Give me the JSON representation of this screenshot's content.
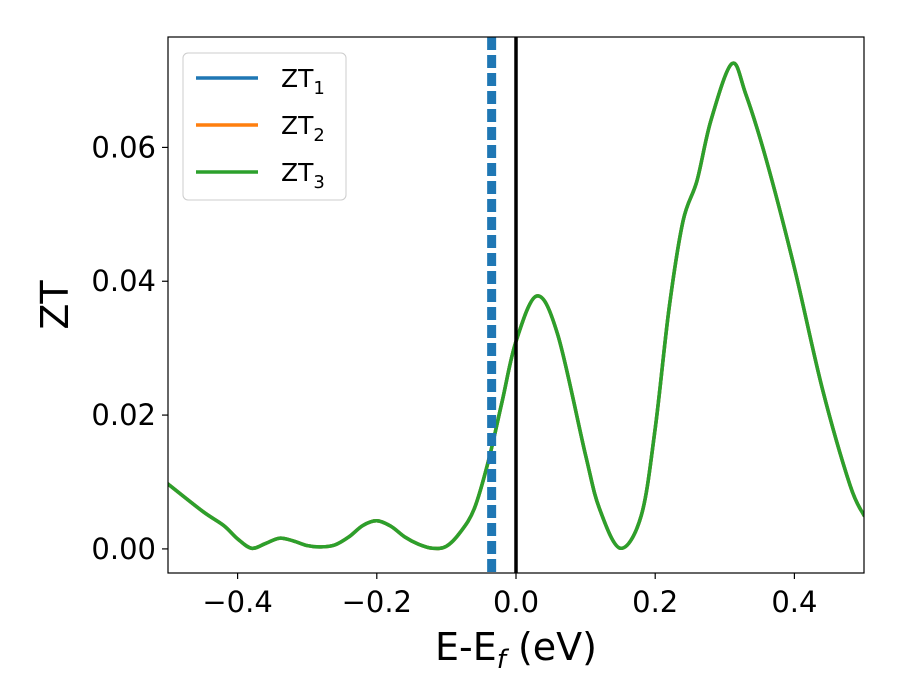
{
  "chart_data": {
    "type": "line",
    "title": "",
    "xlabel": "E-E",
    "xlabel_sub": "f",
    "xlabel_unit": " (eV)",
    "ylabel": "ZT",
    "xlim": [
      -0.5,
      0.5
    ],
    "ylim": [
      -0.0036,
      0.0765
    ],
    "xticks": [
      -0.4,
      -0.2,
      0.0,
      0.2,
      0.4
    ],
    "xtick_labels": [
      "−0.4",
      "−0.2",
      "0.0",
      "0.2",
      "0.4"
    ],
    "yticks": [
      0.0,
      0.02,
      0.04,
      0.06
    ],
    "ytick_labels": [
      "0.00",
      "0.02",
      "0.04",
      "0.06"
    ],
    "grid": false,
    "legend_position": "top-left",
    "fermi_line_x": 0.0,
    "dashed_line_x": -0.035,
    "series": [
      {
        "name": "ZT",
        "sub": "1",
        "color": "#1f77b4",
        "x": [
          -0.5,
          -0.45,
          -0.42,
          -0.4,
          -0.38,
          -0.36,
          -0.34,
          -0.32,
          -0.3,
          -0.28,
          -0.26,
          -0.24,
          -0.22,
          -0.2,
          -0.18,
          -0.16,
          -0.14,
          -0.12,
          -0.1,
          -0.08,
          -0.06,
          -0.04,
          -0.02,
          0.0,
          0.03,
          0.06,
          0.1,
          0.12,
          0.15,
          0.18,
          0.2,
          0.22,
          0.24,
          0.26,
          0.28,
          0.31,
          0.33,
          0.36,
          0.4,
          0.44,
          0.48,
          0.5
        ],
        "y": [
          0.0097,
          0.0056,
          0.0035,
          0.0015,
          0.0001,
          0.0008,
          0.0016,
          0.0012,
          0.0005,
          0.0003,
          0.0006,
          0.0018,
          0.0035,
          0.0042,
          0.0034,
          0.0018,
          0.0007,
          0.0001,
          0.0004,
          0.0025,
          0.006,
          0.013,
          0.022,
          0.031,
          0.0378,
          0.032,
          0.014,
          0.006,
          0.0001,
          0.005,
          0.018,
          0.036,
          0.049,
          0.055,
          0.064,
          0.0725,
          0.068,
          0.058,
          0.042,
          0.024,
          0.0095,
          0.005
        ]
      },
      {
        "name": "ZT",
        "sub": "2",
        "color": "#ff7f0e",
        "x": [
          -0.5,
          -0.45,
          -0.42,
          -0.4,
          -0.38,
          -0.36,
          -0.34,
          -0.32,
          -0.3,
          -0.28,
          -0.26,
          -0.24,
          -0.22,
          -0.2,
          -0.18,
          -0.16,
          -0.14,
          -0.12,
          -0.1,
          -0.08,
          -0.06,
          -0.04,
          -0.02,
          0.0,
          0.03,
          0.06,
          0.1,
          0.12,
          0.15,
          0.18,
          0.2,
          0.22,
          0.24,
          0.26,
          0.28,
          0.31,
          0.33,
          0.36,
          0.4,
          0.44,
          0.48,
          0.5
        ],
        "y": [
          0.0097,
          0.0056,
          0.0035,
          0.0015,
          0.0001,
          0.0008,
          0.0016,
          0.0012,
          0.0005,
          0.0003,
          0.0006,
          0.0018,
          0.0035,
          0.0042,
          0.0034,
          0.0018,
          0.0007,
          0.0001,
          0.0004,
          0.0025,
          0.006,
          0.013,
          0.022,
          0.031,
          0.0378,
          0.032,
          0.014,
          0.006,
          0.0001,
          0.005,
          0.018,
          0.036,
          0.049,
          0.055,
          0.064,
          0.0725,
          0.068,
          0.058,
          0.042,
          0.024,
          0.0095,
          0.005
        ]
      },
      {
        "name": "ZT",
        "sub": "3",
        "color": "#2ca02c",
        "x": [
          -0.5,
          -0.45,
          -0.42,
          -0.4,
          -0.38,
          -0.36,
          -0.34,
          -0.32,
          -0.3,
          -0.28,
          -0.26,
          -0.24,
          -0.22,
          -0.2,
          -0.18,
          -0.16,
          -0.14,
          -0.12,
          -0.1,
          -0.08,
          -0.06,
          -0.04,
          -0.02,
          0.0,
          0.03,
          0.06,
          0.1,
          0.12,
          0.15,
          0.18,
          0.2,
          0.22,
          0.24,
          0.26,
          0.28,
          0.31,
          0.33,
          0.36,
          0.4,
          0.44,
          0.48,
          0.5
        ],
        "y": [
          0.0097,
          0.0056,
          0.0035,
          0.0015,
          0.0001,
          0.0008,
          0.0016,
          0.0012,
          0.0005,
          0.0003,
          0.0006,
          0.0018,
          0.0035,
          0.0042,
          0.0034,
          0.0018,
          0.0007,
          0.0001,
          0.0004,
          0.0025,
          0.006,
          0.013,
          0.022,
          0.031,
          0.0378,
          0.032,
          0.014,
          0.006,
          0.0001,
          0.005,
          0.018,
          0.036,
          0.049,
          0.055,
          0.064,
          0.0725,
          0.068,
          0.058,
          0.042,
          0.024,
          0.0095,
          0.005
        ]
      }
    ]
  }
}
